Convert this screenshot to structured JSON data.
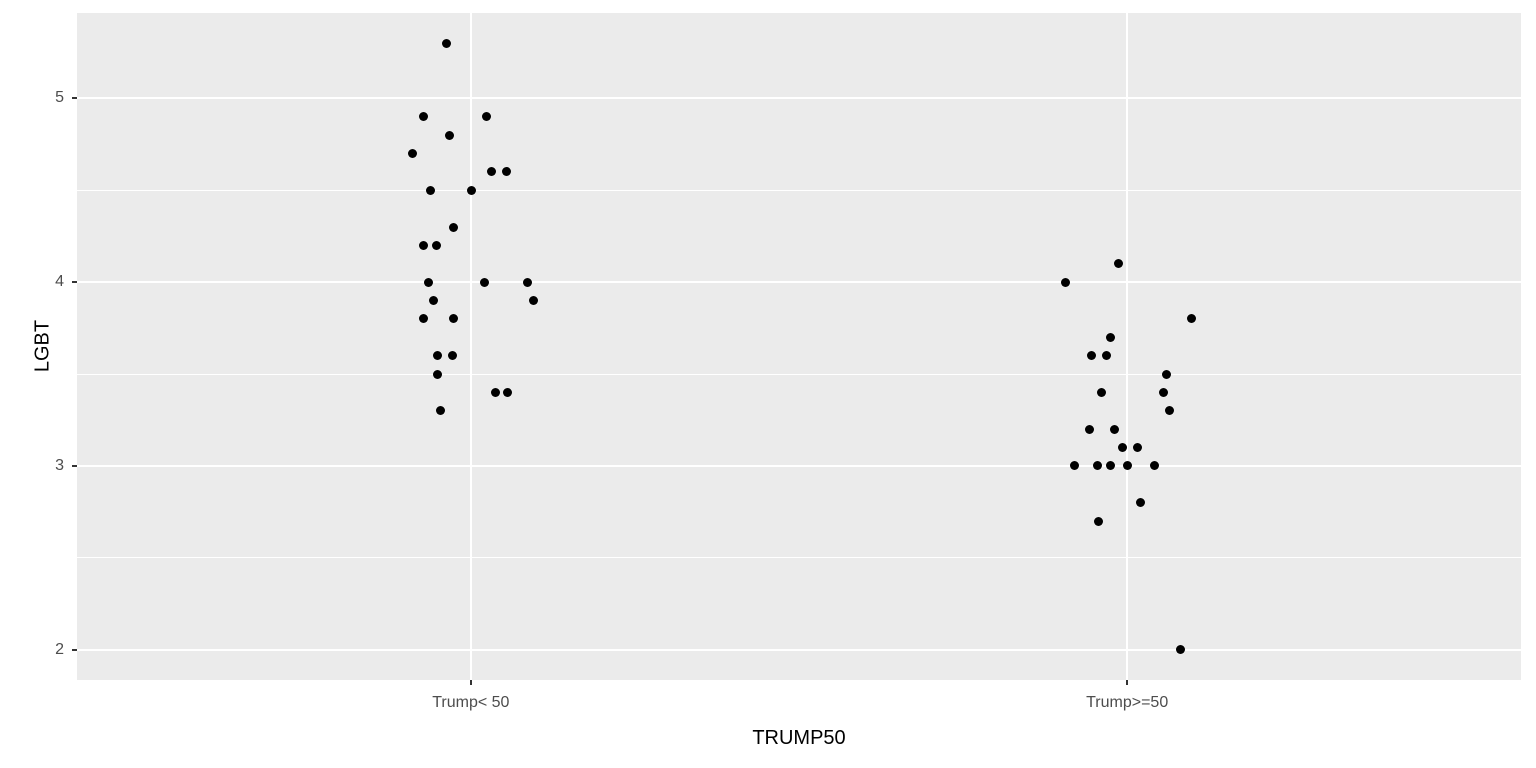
{
  "chart_data": {
    "type": "scatter",
    "title": "",
    "xlabel": "TRUMP50",
    "ylabel": "LGBT",
    "x_categories": [
      "Trump< 50",
      "Trump>=50"
    ],
    "y_ticks": [
      2,
      3,
      4,
      5
    ],
    "y_minor_ticks": [
      2.5,
      3.5,
      4.5
    ],
    "ylim": [
      1.835,
      5.465
    ],
    "grid": true,
    "legend": "none",
    "panel_background_color": "#EBEBEB",
    "gridline_color": "#FFFFFF",
    "point_color": "#000000",
    "tick_label_color": "#4D4D4D",
    "axis_title_color": "#000000",
    "series": [
      {
        "name": "Trump< 50",
        "category_index": 0,
        "points": [
          {
            "dx": -24,
            "y": 5.3
          },
          {
            "dx": -47,
            "y": 4.9
          },
          {
            "dx": 16,
            "y": 4.9
          },
          {
            "dx": -21,
            "y": 4.8
          },
          {
            "dx": -58,
            "y": 4.7
          },
          {
            "dx": 21,
            "y": 4.6
          },
          {
            "dx": 36,
            "y": 4.6
          },
          {
            "dx": -40,
            "y": 4.5
          },
          {
            "dx": 1,
            "y": 4.5
          },
          {
            "dx": -17,
            "y": 4.3
          },
          {
            "dx": -47,
            "y": 4.2
          },
          {
            "dx": -34,
            "y": 4.2
          },
          {
            "dx": -42,
            "y": 4.0
          },
          {
            "dx": 14,
            "y": 4.0
          },
          {
            "dx": 57,
            "y": 4.0
          },
          {
            "dx": -37,
            "y": 3.9
          },
          {
            "dx": 63,
            "y": 3.9
          },
          {
            "dx": -47,
            "y": 3.8
          },
          {
            "dx": -17,
            "y": 3.8
          },
          {
            "dx": -33,
            "y": 3.6
          },
          {
            "dx": -18,
            "y": 3.6
          },
          {
            "dx": -33,
            "y": 3.5
          },
          {
            "dx": 25,
            "y": 3.4
          },
          {
            "dx": 37,
            "y": 3.4
          },
          {
            "dx": -30,
            "y": 3.3
          }
        ]
      },
      {
        "name": "Trump>=50",
        "category_index": 1,
        "points": [
          {
            "dx": -9,
            "y": 4.1
          },
          {
            "dx": -62,
            "y": 4.0
          },
          {
            "dx": 64,
            "y": 3.8
          },
          {
            "dx": -17,
            "y": 3.7
          },
          {
            "dx": -36,
            "y": 3.6
          },
          {
            "dx": -21,
            "y": 3.6
          },
          {
            "dx": 39,
            "y": 3.5
          },
          {
            "dx": -26,
            "y": 3.4
          },
          {
            "dx": 36,
            "y": 3.4
          },
          {
            "dx": 42,
            "y": 3.3
          },
          {
            "dx": -38,
            "y": 3.2
          },
          {
            "dx": -13,
            "y": 3.2
          },
          {
            "dx": -5,
            "y": 3.1
          },
          {
            "dx": 10,
            "y": 3.1
          },
          {
            "dx": -53,
            "y": 3.0
          },
          {
            "dx": -30,
            "y": 3.0
          },
          {
            "dx": -17,
            "y": 3.0
          },
          {
            "dx": 0,
            "y": 3.0
          },
          {
            "dx": 27,
            "y": 3.0
          },
          {
            "dx": 13,
            "y": 2.8
          },
          {
            "dx": -29,
            "y": 2.7
          },
          {
            "dx": 53,
            "y": 2.0
          }
        ]
      }
    ]
  }
}
